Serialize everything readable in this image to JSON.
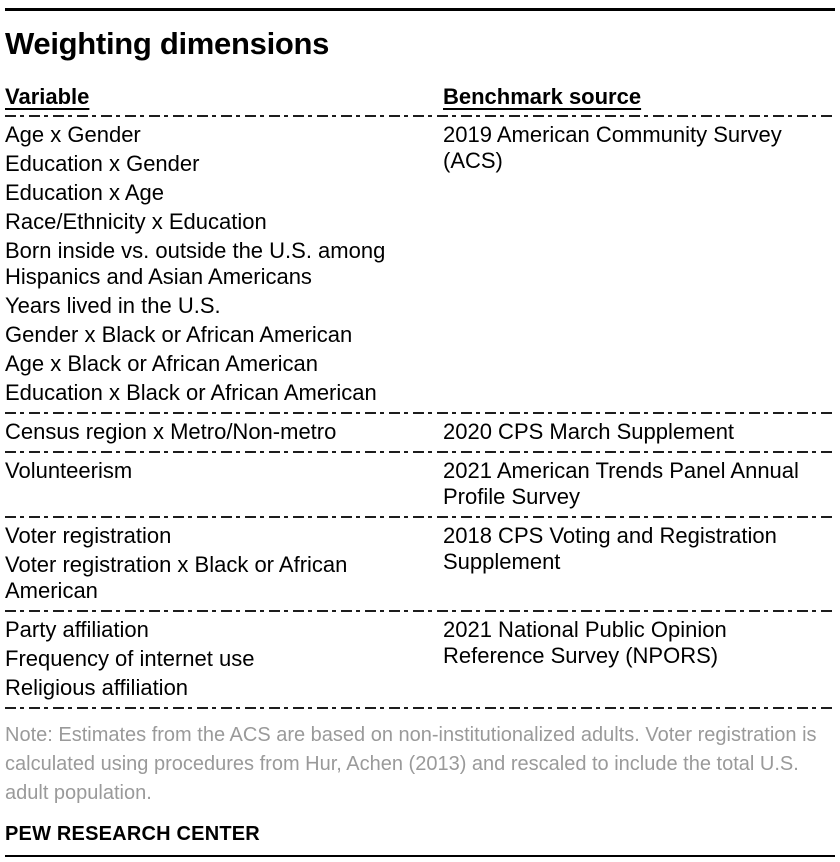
{
  "chart_data": {
    "type": "table",
    "title": "Weighting dimensions",
    "columns": [
      "Variable",
      "Benchmark source"
    ],
    "rows": [
      {
        "variables": [
          "Age x Gender",
          "Education x Gender",
          "Education x Age",
          "Race/Ethnicity x Education",
          "Born inside vs. outside the U.S. among Hispanics and Asian Americans",
          "Years lived in the U.S.",
          "Gender x Black or African American",
          "Age x Black or African American",
          "Education x Black or African American"
        ],
        "source": "2019 American Community Survey (ACS)"
      },
      {
        "variables": [
          "Census region x Metro/Non-metro"
        ],
        "source": "2020 CPS March Supplement"
      },
      {
        "variables": [
          "Volunteerism"
        ],
        "source": "2021 American Trends Panel Annual Profile Survey"
      },
      {
        "variables": [
          "Voter registration",
          "Voter registration x Black or African American"
        ],
        "source": "2018 CPS Voting and Registration Supplement"
      },
      {
        "variables": [
          "Party affiliation",
          "Frequency of internet use",
          "Religious affiliation"
        ],
        "source": "2021 National Public Opinion Reference Survey (NPORS)"
      }
    ],
    "layout": {
      "legend": "none",
      "row_separators": "dashed",
      "header_underline": true
    }
  },
  "note": "Note: Estimates from the ACS are based on non-institutionalized adults. Voter registration is calculated using procedures from Hur, Achen (2013) and rescaled to include the total U.S. adult population.",
  "footer": "PEW RESEARCH CENTER",
  "colors": {
    "text": "#000000",
    "note_text": "#9a9a9a",
    "rule": "#000000",
    "divider": "#1d1d1d",
    "background": "#ffffff"
  }
}
